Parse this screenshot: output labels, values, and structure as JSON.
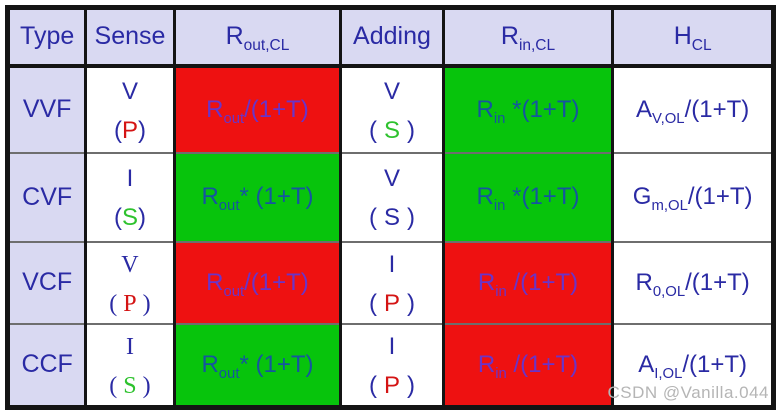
{
  "watermark": "CSDN @Vanilla.044",
  "colors": {
    "header_bg": "#d9d9f2",
    "text_blue": "#2a2aa4",
    "cell_red_bg": "#ee1111",
    "cell_green_bg": "#07c40c",
    "red_cell_text": "#6a34c8",
    "green_cell_text": "#15559f",
    "letter_red": "#d41414",
    "letter_green": "#2ec22e",
    "watermark_gray": "#b5b5b5"
  },
  "header": {
    "type": "Type",
    "sense": "Sense",
    "rout": {
      "base": "R",
      "sub": "out,CL"
    },
    "adding": "Adding",
    "rin": {
      "base": "R",
      "sub": "in,CL"
    },
    "hcl": {
      "base": "H",
      "sub": "CL"
    }
  },
  "rows": [
    {
      "type": "VVF",
      "sense": {
        "quantity": "V",
        "open": "(",
        "letter": "P",
        "letter_color": "red",
        "close": ")"
      },
      "rout": {
        "bg": "red",
        "base": "R",
        "sub": "out",
        "rest": "/(1+T)"
      },
      "adding": {
        "quantity": "V",
        "open": "(",
        "letter": "S",
        "letter_color": "green",
        "close": ")"
      },
      "rin": {
        "bg": "green",
        "base": "R",
        "sub": "in",
        "rest": " *(1+T)"
      },
      "hcl": {
        "base": "A",
        "sub": "V,OL",
        "rest": "/(1+T)"
      }
    },
    {
      "type": "CVF",
      "sense": {
        "quantity": "I",
        "open": "(",
        "letter": "S",
        "letter_color": "green",
        "close": ")"
      },
      "rout": {
        "bg": "green",
        "base": "R",
        "sub": "out",
        "rest": "* (1+T)"
      },
      "adding": {
        "quantity": "V",
        "open": "(",
        "letter": "S",
        "letter_color": "blue",
        "close": ")"
      },
      "rin": {
        "bg": "green",
        "base": "R",
        "sub": "in",
        "rest": " *(1+T)"
      },
      "hcl": {
        "base": "G",
        "sub": "m,OL",
        "rest": "/(1+T)"
      }
    },
    {
      "type": "VCF",
      "sense": {
        "quantity": "V",
        "open": "(",
        "letter": "P",
        "letter_color": "red",
        "close": ")"
      },
      "rout": {
        "bg": "red",
        "base": "R",
        "sub": "out",
        "rest": "/(1+T)"
      },
      "adding": {
        "quantity": "I",
        "open": "(",
        "letter": "P",
        "letter_color": "red",
        "close": ")"
      },
      "rin": {
        "bg": "red",
        "base": "R",
        "sub": "in",
        "rest": " /(1+T)"
      },
      "hcl": {
        "base": "R",
        "sub": "0,OL",
        "rest": "/(1+T)"
      }
    },
    {
      "type": "CCF",
      "sense": {
        "quantity": "I",
        "open": "(",
        "letter": "S",
        "letter_color": "green",
        "close": ")"
      },
      "rout": {
        "bg": "green",
        "base": "R",
        "sub": "out",
        "rest": "* (1+T)"
      },
      "adding": {
        "quantity": "I",
        "open": "(",
        "letter": "P",
        "letter_color": "red",
        "close": ")"
      },
      "rin": {
        "bg": "red",
        "base": "R",
        "sub": "in",
        "rest": " /(1+T)"
      },
      "hcl": {
        "base": "A",
        "sub": "I,OL",
        "rest": "/(1+T)"
      }
    }
  ]
}
